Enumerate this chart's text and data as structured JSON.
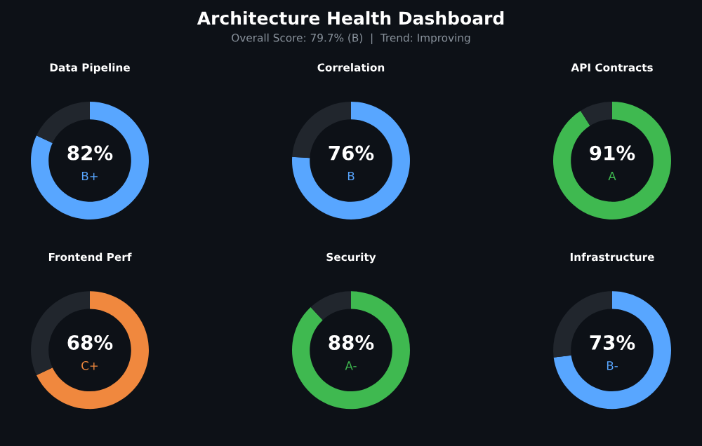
{
  "chart_data": [
    {
      "type": "other",
      "title": "Architecture Health Dashboard",
      "subtitle": "Overall Score: 79.7% (B)  |  Trend: Improving"
    },
    {
      "type": "donut",
      "title": "Data Pipeline",
      "categories": [
        null,
        null
      ],
      "values": [
        82,
        18
      ],
      "colors": [
        "#58a6ff",
        "#21262d"
      ],
      "annotations": [
        "82%",
        "B+"
      ]
    },
    {
      "type": "donut",
      "title": "Correlation",
      "categories": [
        null,
        null
      ],
      "values": [
        76,
        24
      ],
      "colors": [
        "#58a6ff",
        "#21262d"
      ],
      "annotations": [
        "76%",
        "B"
      ]
    },
    {
      "type": "donut",
      "title": "API Contracts",
      "categories": [
        null,
        null
      ],
      "values": [
        91,
        9
      ],
      "colors": [
        "#3fb950",
        "#21262d"
      ],
      "annotations": [
        "91%",
        "A"
      ]
    },
    {
      "type": "donut",
      "title": "Frontend Perf",
      "categories": [
        null,
        null
      ],
      "values": [
        68,
        32
      ],
      "colors": [
        "#f0883e",
        "#21262d"
      ],
      "annotations": [
        "68%",
        "C+"
      ]
    },
    {
      "type": "donut",
      "title": "Security",
      "categories": [
        null,
        null
      ],
      "values": [
        88,
        12
      ],
      "colors": [
        "#3fb950",
        "#21262d"
      ],
      "annotations": [
        "88%",
        "A-"
      ]
    },
    {
      "type": "donut",
      "title": "Infrastructure",
      "categories": [
        null,
        null
      ],
      "values": [
        73,
        27
      ],
      "colors": [
        "#58a6ff",
        "#21262d"
      ],
      "annotations": [
        "73%",
        "B-"
      ]
    }
  ]
}
